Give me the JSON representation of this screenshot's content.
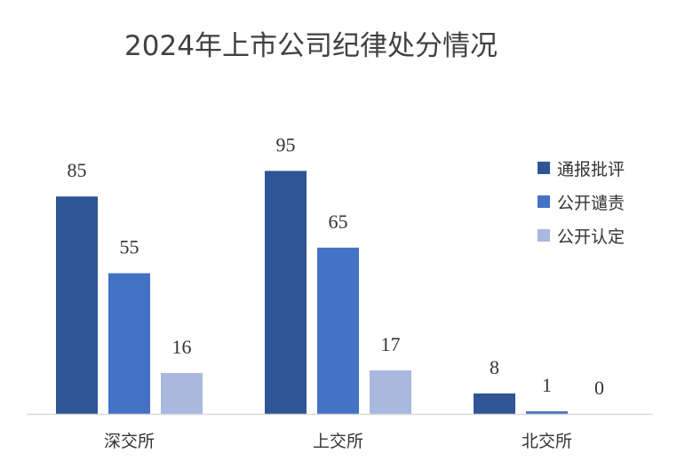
{
  "chart_data": {
    "type": "bar",
    "title": "2024年上市公司纪律处分情况",
    "categories": [
      "深交所",
      "上交所",
      "北交所"
    ],
    "series": [
      {
        "name": "通报批评",
        "values": [
          85,
          95,
          8
        ],
        "color": "#2f5597"
      },
      {
        "name": "公开谴责",
        "values": [
          55,
          65,
          1
        ],
        "color": "#4472c4"
      },
      {
        "name": "公开认定",
        "values": [
          16,
          17,
          0
        ],
        "color": "#a9b8dd"
      }
    ],
    "ylim": [
      0,
      100
    ],
    "grid": false,
    "legend_position": "right",
    "data_labels": true
  }
}
